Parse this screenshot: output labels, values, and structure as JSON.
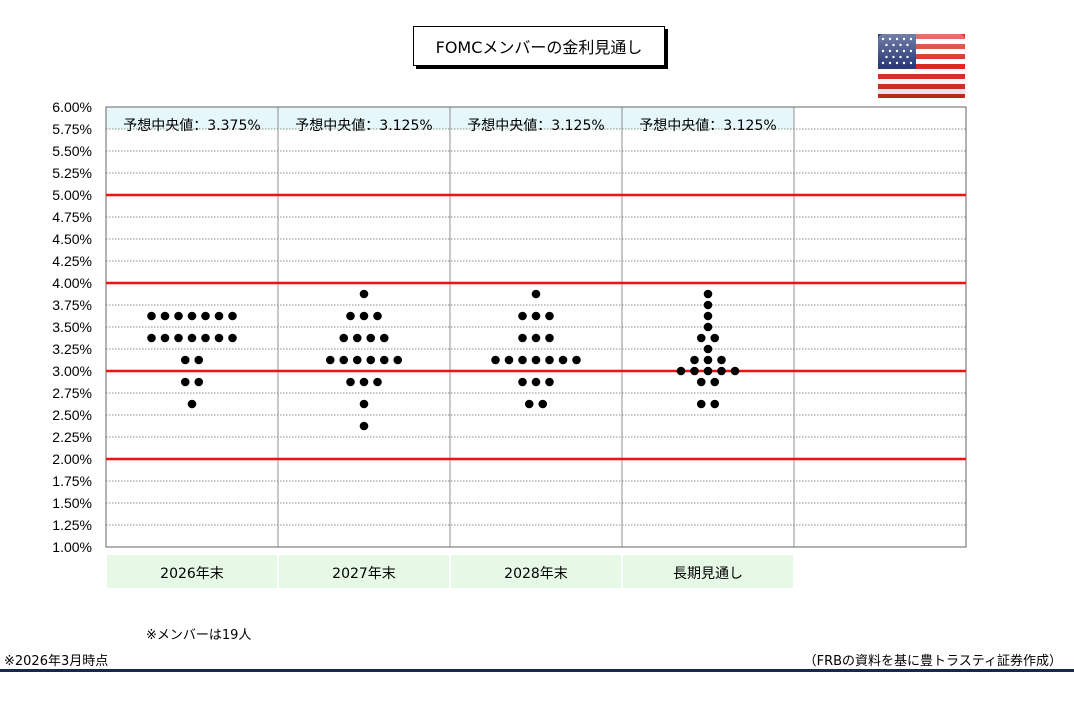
{
  "title": "FOMCメンバーの金利見通し",
  "flag_icon": "us-flag-icon",
  "notes": {
    "members": "※メンバーは19人",
    "as_of": "※2026年3月時点",
    "source": "（FRBの資料を基に豊トラスティ証券作成）"
  },
  "colors": {
    "reference_line": "#ee1111",
    "median_band": "#e6f7fb",
    "category_band": "#e6f9e6",
    "dot": "#000000",
    "bottom_rule": "#16284f"
  },
  "chart_data": {
    "type": "scatter",
    "title": "FOMCメンバーの金利見通し",
    "categories": [
      "2026年末",
      "2027年末",
      "2028年末",
      "長期見通し"
    ],
    "ylim": [
      1.0,
      6.0
    ],
    "ytick_step": 0.25,
    "ytick_labels": [
      "1.00%",
      "1.25%",
      "1.50%",
      "1.75%",
      "2.00%",
      "2.25%",
      "2.50%",
      "2.75%",
      "3.00%",
      "3.25%",
      "3.50%",
      "3.75%",
      "4.00%",
      "4.25%",
      "4.50%",
      "4.75%",
      "5.00%",
      "5.25%",
      "5.50%",
      "5.75%",
      "6.00%"
    ],
    "reference_lines": [
      2.0,
      3.0,
      4.0,
      5.0
    ],
    "grid": true,
    "medians": [
      "予想中央値：3.375%",
      "予想中央値：3.125%",
      "予想中央値：3.125%",
      "予想中央値：3.125%"
    ],
    "dots": [
      [
        {
          "rate": 3.625,
          "count": 7
        },
        {
          "rate": 3.375,
          "count": 7
        },
        {
          "rate": 3.125,
          "count": 2
        },
        {
          "rate": 2.875,
          "count": 2
        },
        {
          "rate": 2.625,
          "count": 1
        }
      ],
      [
        {
          "rate": 3.875,
          "count": 1
        },
        {
          "rate": 3.625,
          "count": 3
        },
        {
          "rate": 3.375,
          "count": 4
        },
        {
          "rate": 3.125,
          "count": 6
        },
        {
          "rate": 2.875,
          "count": 3
        },
        {
          "rate": 2.625,
          "count": 1
        },
        {
          "rate": 2.375,
          "count": 1
        }
      ],
      [
        {
          "rate": 3.875,
          "count": 1
        },
        {
          "rate": 3.625,
          "count": 3
        },
        {
          "rate": 3.375,
          "count": 3
        },
        {
          "rate": 3.125,
          "count": 7
        },
        {
          "rate": 2.875,
          "count": 3
        },
        {
          "rate": 2.625,
          "count": 2
        }
      ],
      [
        {
          "rate": 3.875,
          "count": 1
        },
        {
          "rate": 3.75,
          "count": 1
        },
        {
          "rate": 3.625,
          "count": 1
        },
        {
          "rate": 3.5,
          "count": 1
        },
        {
          "rate": 3.375,
          "count": 2
        },
        {
          "rate": 3.25,
          "count": 1
        },
        {
          "rate": 3.125,
          "count": 3
        },
        {
          "rate": 3.0,
          "count": 5
        },
        {
          "rate": 2.875,
          "count": 2
        },
        {
          "rate": 2.625,
          "count": 2
        }
      ]
    ]
  }
}
